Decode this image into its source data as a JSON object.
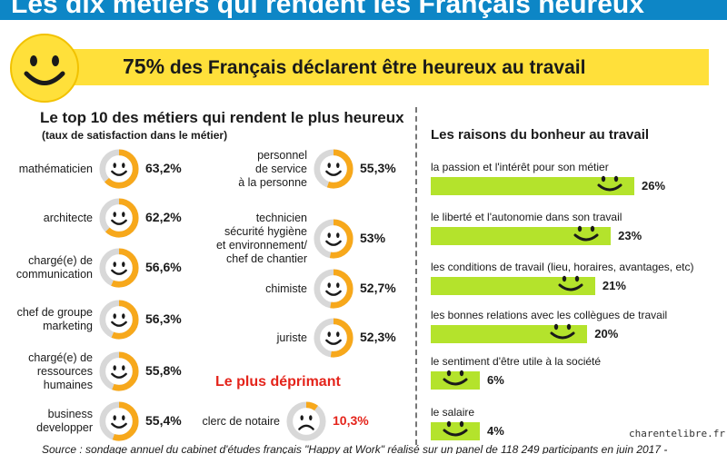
{
  "title": "Les dix métiers qui rendent les Français heureux",
  "headline": {
    "percent": "75%",
    "text": " des Français déclarent être heureux au travail"
  },
  "colors": {
    "title_bar": "#0d86c6",
    "highlight_yellow": "#ffe03a",
    "ring_orange": "#f7a81b",
    "ring_gray": "#d8d8d8",
    "bar_green": "#b4e32c",
    "accent_red": "#e4241b"
  },
  "chart_data": [
    {
      "type": "donut-list",
      "title": "Le top 10 des métiers qui rendent le plus heureux",
      "subtitle": "(taux de satisfaction dans le métier)",
      "categories": [
        "mathématicien",
        "architecte",
        "chargé(e) de communication",
        "chef de groupe marketing",
        "chargé(e) de ressources humaines",
        "business developper",
        "personnel de service à la personne",
        "technicien sécurité hygiène et environnement/ chef de chantier",
        "chimiste",
        "juriste"
      ],
      "values": [
        63.2,
        62.2,
        56.6,
        56.3,
        55.8,
        55.4,
        55.3,
        53,
        52.7,
        52.3
      ],
      "labels": [
        "63,2%",
        "62,2%",
        "56,6%",
        "56,3%",
        "55,8%",
        "55,4%",
        "55,3%",
        "53%",
        "52,7%",
        "52,3%"
      ],
      "ylim": [
        0,
        100
      ]
    },
    {
      "type": "donut-list",
      "title": "Le plus déprimant",
      "categories": [
        "clerc de notaire"
      ],
      "values": [
        10.3
      ],
      "labels": [
        "10,3%"
      ],
      "ylim": [
        0,
        100
      ]
    },
    {
      "type": "bar",
      "orientation": "horizontal",
      "title": "Les raisons du bonheur au travail",
      "categories": [
        "la passion et l'intérêt pour son métier",
        "le liberté et l'autonomie dans son travail",
        "les conditions de travail (lieu, horaires, avantages, etc)",
        "les bonnes relations avec les collègues de travail",
        "le sentiment d'être utile à la société",
        "le salaire"
      ],
      "values": [
        26,
        23,
        21,
        20,
        6,
        4
      ],
      "labels": [
        "26%",
        "23%",
        "21%",
        "20%",
        "6%",
        "4%"
      ]
    }
  ],
  "jobs_display": [
    {
      "label": "mathématicien",
      "value": "63,2%"
    },
    {
      "label": "architecte",
      "value": "62,2%"
    },
    {
      "label": "chargé(e) de\ncommunication",
      "value": "56,6%"
    },
    {
      "label": "chef de groupe\nmarketing",
      "value": "56,3%"
    },
    {
      "label": "chargé(e) de\nressources\nhumaines",
      "value": "55,8%"
    },
    {
      "label": "business\ndevelopper",
      "value": "55,4%"
    },
    {
      "label": "personnel\nde service\nà la personne",
      "value": "55,3%"
    },
    {
      "label": "technicien\nsécurité hygiène\net environnement/\nchef de chantier",
      "value": "53%"
    },
    {
      "label": "chimiste",
      "value": "52,7%"
    },
    {
      "label": "juriste",
      "value": "52,3%"
    }
  ],
  "worst_display": {
    "label": "clerc de notaire",
    "value": "10,3%"
  },
  "source": "Source : sondage annuel du cabinet d'études français \"Happy at Work\" réalisé sur un panel de 118 249 participants en juin 2017 -",
  "credit": "charentelibre.fr"
}
